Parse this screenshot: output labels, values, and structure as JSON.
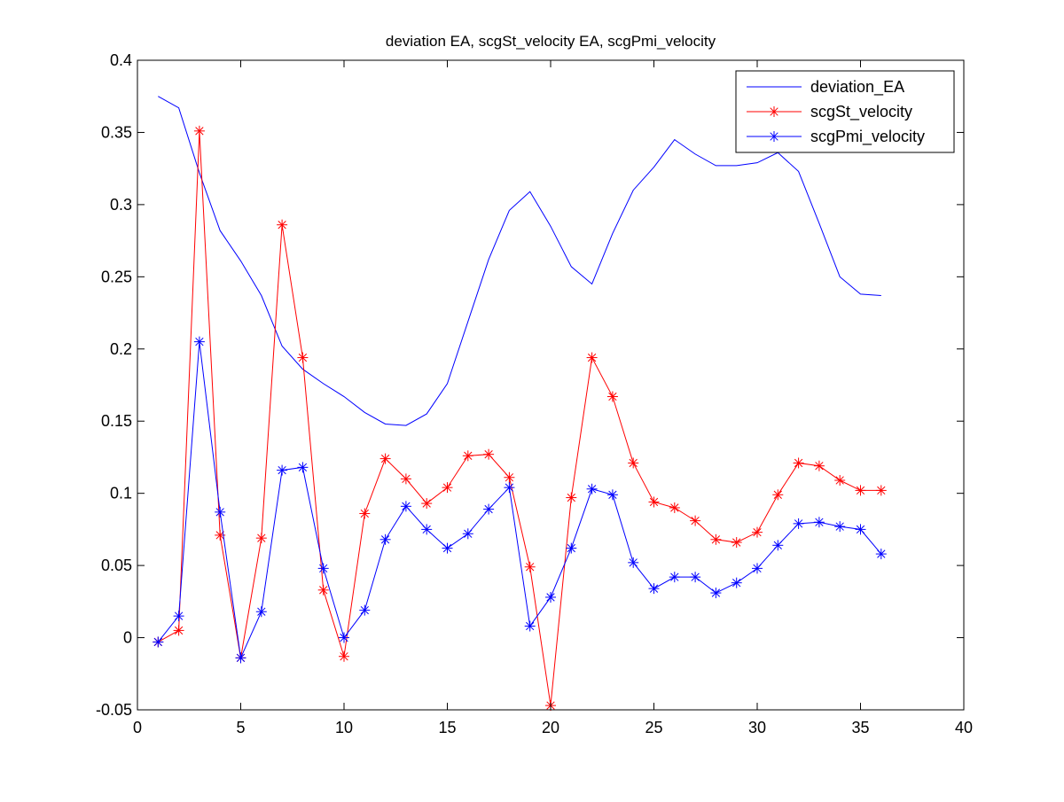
{
  "chart_data": {
    "type": "line",
    "title": "deviation EA, scgSt_velocity EA, scgPmi_velocity",
    "xlabel": "",
    "ylabel": "",
    "xlim": [
      0,
      40
    ],
    "ylim": [
      -0.05,
      0.4
    ],
    "xticks": [
      0,
      5,
      10,
      15,
      20,
      25,
      30,
      35,
      40
    ],
    "yticks": [
      -0.05,
      0,
      0.05,
      0.1,
      0.15,
      0.2,
      0.25,
      0.3,
      0.35,
      0.4
    ],
    "xtick_labels": [
      "0",
      "5",
      "10",
      "15",
      "20",
      "25",
      "30",
      "35",
      "40"
    ],
    "ytick_labels": [
      "-0.05",
      "0",
      "0.05",
      "0.1",
      "0.15",
      "0.2",
      "0.25",
      "0.3",
      "0.35",
      "0.4"
    ],
    "grid": false,
    "legend_position": "top-right",
    "x": [
      1,
      2,
      3,
      4,
      5,
      6,
      7,
      8,
      9,
      10,
      11,
      12,
      13,
      14,
      15,
      16,
      17,
      18,
      19,
      20,
      21,
      22,
      23,
      24,
      25,
      26,
      27,
      28,
      29,
      30,
      31,
      32,
      33,
      34,
      35,
      36
    ],
    "series": [
      {
        "name": "deviation_EA",
        "color": "#0000ff",
        "marker": "none",
        "values": [
          0.375,
          0.367,
          0.322,
          0.282,
          0.261,
          0.237,
          0.202,
          0.186,
          0.176,
          0.167,
          0.156,
          0.148,
          0.147,
          0.155,
          0.176,
          0.219,
          0.262,
          0.296,
          0.309,
          0.285,
          0.257,
          0.245,
          0.28,
          0.31,
          0.326,
          0.345,
          0.335,
          0.327,
          0.327,
          0.329,
          0.336,
          0.323,
          0.287,
          0.25,
          0.238,
          0.237
        ]
      },
      {
        "name": "scgSt_velocity",
        "color": "#ff0000",
        "marker": "asterisk",
        "values": [
          -0.003,
          0.005,
          0.351,
          0.071,
          -0.014,
          0.069,
          0.286,
          0.194,
          0.033,
          -0.013,
          0.086,
          0.124,
          0.11,
          0.093,
          0.104,
          0.126,
          0.127,
          0.111,
          0.049,
          -0.047,
          0.097,
          0.194,
          0.167,
          0.121,
          0.094,
          0.09,
          0.081,
          0.068,
          0.066,
          0.073,
          0.099,
          0.121,
          0.119,
          0.109,
          0.102,
          0.102
        ]
      },
      {
        "name": "scgPmi_velocity",
        "color": "#0000ff",
        "marker": "asterisk",
        "values": [
          -0.003,
          0.015,
          0.205,
          0.087,
          -0.014,
          0.018,
          0.116,
          0.118,
          0.048,
          0.0,
          0.019,
          0.068,
          0.091,
          0.075,
          0.062,
          0.072,
          0.089,
          0.104,
          0.008,
          0.028,
          0.062,
          0.103,
          0.099,
          0.052,
          0.034,
          0.042,
          0.042,
          0.031,
          0.038,
          0.048,
          0.064,
          0.079,
          0.08,
          0.077,
          0.075,
          0.058
        ]
      }
    ]
  }
}
